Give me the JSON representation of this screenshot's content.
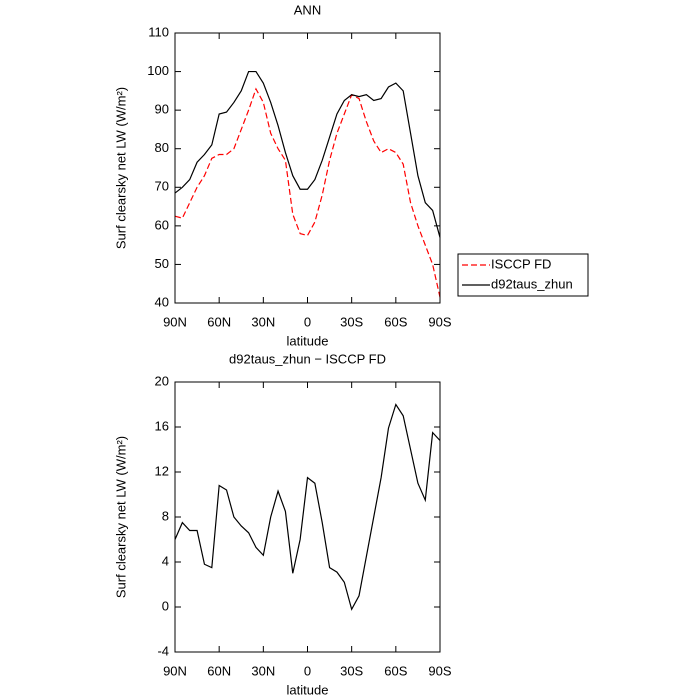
{
  "chart_data": [
    {
      "type": "line",
      "title": "ANN",
      "xlabel": "latitude",
      "ylabel": "Surf clearsky net LW (W/m²)",
      "x": [
        90,
        85,
        80,
        75,
        70,
        65,
        60,
        55,
        50,
        45,
        40,
        35,
        30,
        25,
        20,
        15,
        10,
        5,
        0,
        -5,
        -10,
        -15,
        -20,
        -25,
        -30,
        -35,
        -40,
        -45,
        -50,
        -55,
        -60,
        -65,
        -70,
        -75,
        -80,
        -85,
        -90
      ],
      "series": [
        {
          "name": "ISCCP FD",
          "color": "#ff0000",
          "dash": true,
          "values": [
            62.5,
            62,
            66,
            70,
            73,
            77.5,
            78.5,
            78.5,
            80,
            85,
            90,
            95.5,
            92,
            84,
            80,
            77,
            63,
            58,
            57.5,
            61,
            68,
            77,
            84,
            89,
            94,
            93,
            87,
            82,
            79,
            80,
            79,
            76,
            66,
            60,
            55,
            50,
            41.5
          ]
        },
        {
          "name": "d92taus_zhun",
          "color": "#000000",
          "dash": false,
          "values": [
            68.5,
            70,
            72,
            76.5,
            78.5,
            81,
            89,
            89.5,
            92,
            95,
            100,
            100,
            97,
            92,
            86,
            79,
            73,
            69.5,
            69.5,
            72,
            77,
            83,
            89,
            92.5,
            94,
            93.5,
            94,
            92.5,
            93,
            96,
            97,
            95,
            84,
            73,
            66,
            64,
            57
          ]
        }
      ],
      "xlim": [
        90,
        -90
      ],
      "xticks": [
        {
          "value": 90,
          "label": "90N"
        },
        {
          "value": 60,
          "label": "60N"
        },
        {
          "value": 30,
          "label": "30N"
        },
        0,
        {
          "value": -30,
          "label": "30S"
        },
        {
          "value": -60,
          "label": "60S"
        },
        {
          "value": -90,
          "label": "90S"
        }
      ],
      "ylim": [
        40,
        110
      ],
      "yticks": [
        40,
        50,
        60,
        70,
        80,
        90,
        100,
        110
      ],
      "legend": "outside right"
    },
    {
      "type": "line",
      "title": "d92taus_zhun − ISCCP FD",
      "xlabel": "latitude",
      "ylabel": "Surf clearsky net LW (W/m²)",
      "x": [
        90,
        85,
        80,
        75,
        70,
        65,
        60,
        55,
        50,
        45,
        40,
        35,
        30,
        25,
        20,
        15,
        10,
        5,
        0,
        -5,
        -10,
        -15,
        -20,
        -25,
        -30,
        -35,
        -40,
        -45,
        -50,
        -55,
        -60,
        -65,
        -70,
        -75,
        -80,
        -85,
        -90
      ],
      "series": [
        {
          "color": "#000000",
          "dash": false,
          "values": [
            6,
            7.5,
            6.8,
            6.8,
            3.8,
            3.5,
            10.8,
            10.4,
            8,
            7.2,
            6.6,
            5.3,
            4.6,
            8,
            10.3,
            8.5,
            3,
            6,
            11.5,
            11,
            7.5,
            3.5,
            3.1,
            2.2,
            -0.2,
            1,
            4.5,
            8,
            11.5,
            15.9,
            18,
            17,
            14,
            11,
            9.5,
            15.5,
            14.8
          ]
        }
      ],
      "xlim": [
        90,
        -90
      ],
      "xticks": [
        {
          "value": 90,
          "label": "90N"
        },
        {
          "value": 60,
          "label": "60N"
        },
        {
          "value": 30,
          "label": "30N"
        },
        0,
        {
          "value": -30,
          "label": "30S"
        },
        {
          "value": -60,
          "label": "60S"
        },
        {
          "value": -90,
          "label": "90S"
        }
      ],
      "ylim": [
        -4,
        20
      ],
      "yticks": [
        -4,
        0,
        4,
        8,
        12,
        16,
        20
      ]
    }
  ]
}
